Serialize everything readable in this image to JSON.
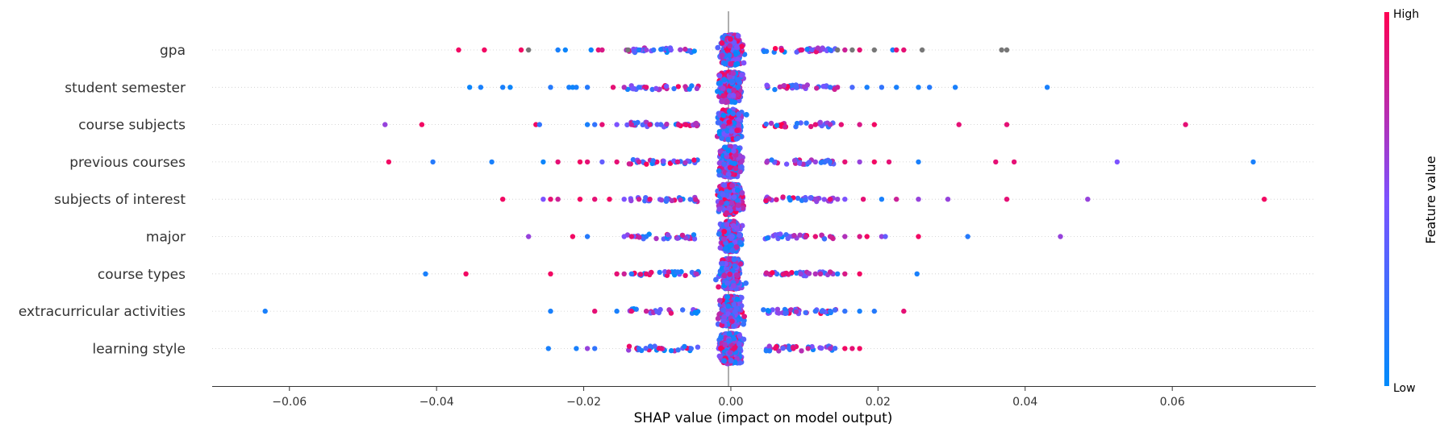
{
  "chart_data": {
    "type": "scatter",
    "subtype": "shap-beeswarm",
    "title": "",
    "xlabel": "SHAP value (impact on model output)",
    "ylabel": "",
    "xlim": [
      -0.0705,
      0.0795
    ],
    "x_ticks": [
      -0.06,
      -0.04,
      -0.02,
      0.0,
      0.02,
      0.04,
      0.06
    ],
    "x_tick_labels": [
      "−0.06",
      "−0.04",
      "−0.02",
      "0.00",
      "0.02",
      "0.04",
      "0.06"
    ],
    "grid": false,
    "colorbar": {
      "title": "Feature value",
      "high_label": "High",
      "low_label": "Low",
      "low_color": "#008bfb",
      "high_color": "#ff0052"
    },
    "features": [
      {
        "name": "gpa",
        "missing_color": "#777777",
        "points": [
          [
            -0.037,
            0.95
          ],
          [
            -0.0335,
            0.95
          ],
          [
            -0.0285,
            0.95
          ],
          [
            -0.0275,
            null
          ],
          [
            -0.0235,
            0.1
          ],
          [
            -0.0225,
            0.05
          ],
          [
            -0.019,
            0.05
          ],
          [
            -0.018,
            0.9
          ],
          [
            -0.0175,
            0.85
          ],
          [
            -0.014,
            null
          ],
          [
            -0.0125,
            0.1
          ],
          [
            -0.0115,
            0.6
          ],
          [
            -0.0105,
            0.2
          ],
          [
            0.0095,
            0.9
          ],
          [
            0.011,
            0.4
          ],
          [
            0.0135,
            0.15
          ],
          [
            0.0145,
            null
          ],
          [
            0.0155,
            0.8
          ],
          [
            0.0165,
            null
          ],
          [
            0.0175,
            0.9
          ],
          [
            0.0195,
            null
          ],
          [
            0.022,
            0.1
          ],
          [
            0.0225,
            0.9
          ],
          [
            0.0235,
            0.9
          ],
          [
            0.026,
            null
          ],
          [
            0.0368,
            null
          ],
          [
            0.0375,
            null
          ]
        ]
      },
      {
        "name": "student semester",
        "points": [
          [
            -0.0355,
            0.05
          ],
          [
            -0.034,
            0.1
          ],
          [
            -0.031,
            0.1
          ],
          [
            -0.03,
            0.05
          ],
          [
            -0.0245,
            0.15
          ],
          [
            -0.022,
            0.1
          ],
          [
            -0.0215,
            0.05
          ],
          [
            -0.021,
            0.1
          ],
          [
            -0.0195,
            0.15
          ],
          [
            -0.016,
            0.9
          ],
          [
            -0.0145,
            0.7
          ],
          [
            -0.0125,
            0.2
          ],
          [
            -0.0115,
            0.9
          ],
          [
            0.0135,
            0.2
          ],
          [
            0.0145,
            0.8
          ],
          [
            0.0165,
            0.3
          ],
          [
            0.0185,
            0.1
          ],
          [
            0.0205,
            0.2
          ],
          [
            0.0225,
            0.1
          ],
          [
            0.0255,
            0.1
          ],
          [
            0.027,
            0.15
          ],
          [
            0.0305,
            0.1
          ],
          [
            0.043,
            0.1
          ]
        ]
      },
      {
        "name": "course subjects",
        "points": [
          [
            -0.047,
            0.6
          ],
          [
            -0.042,
            0.95
          ],
          [
            -0.0265,
            0.95
          ],
          [
            -0.026,
            0.2
          ],
          [
            -0.0195,
            0.1
          ],
          [
            -0.0185,
            0.2
          ],
          [
            -0.0175,
            0.9
          ],
          [
            -0.0155,
            0.5
          ],
          [
            -0.0135,
            0.8
          ],
          [
            -0.011,
            0.9
          ],
          [
            0.0115,
            0.9
          ],
          [
            0.0135,
            0.7
          ],
          [
            0.015,
            0.9
          ],
          [
            0.0175,
            0.85
          ],
          [
            0.0195,
            0.95
          ],
          [
            0.031,
            0.9
          ],
          [
            0.0375,
            0.9
          ],
          [
            0.0618,
            0.9
          ]
        ]
      },
      {
        "name": "previous courses",
        "points": [
          [
            -0.0465,
            0.95
          ],
          [
            -0.0405,
            0.15
          ],
          [
            -0.0325,
            0.1
          ],
          [
            -0.0255,
            0.05
          ],
          [
            -0.0235,
            0.9
          ],
          [
            -0.0205,
            0.95
          ],
          [
            -0.0195,
            0.9
          ],
          [
            -0.0175,
            0.4
          ],
          [
            -0.0155,
            0.9
          ],
          [
            -0.0125,
            0.8
          ],
          [
            0.0115,
            0.6
          ],
          [
            0.0135,
            0.2
          ],
          [
            0.0155,
            0.9
          ],
          [
            0.0175,
            0.6
          ],
          [
            0.0195,
            0.95
          ],
          [
            0.0215,
            0.9
          ],
          [
            0.0255,
            0.1
          ],
          [
            0.036,
            0.9
          ],
          [
            0.0385,
            0.9
          ],
          [
            0.0525,
            0.5
          ],
          [
            0.071,
            0.1
          ]
        ]
      },
      {
        "name": "subjects of interest",
        "points": [
          [
            -0.031,
            0.95
          ],
          [
            -0.0255,
            0.5
          ],
          [
            -0.0245,
            0.9
          ],
          [
            -0.0235,
            0.8
          ],
          [
            -0.0205,
            0.95
          ],
          [
            -0.0185,
            0.9
          ],
          [
            -0.0165,
            0.95
          ],
          [
            -0.0145,
            0.5
          ],
          [
            -0.0125,
            0.8
          ],
          [
            -0.011,
            0.9
          ],
          [
            0.0115,
            0.6
          ],
          [
            0.0135,
            0.9
          ],
          [
            0.0145,
            0.6
          ],
          [
            0.0155,
            0.5
          ],
          [
            0.018,
            0.9
          ],
          [
            0.0205,
            0.1
          ],
          [
            0.0225,
            0.8
          ],
          [
            0.0255,
            0.6
          ],
          [
            0.0295,
            0.6
          ],
          [
            0.0375,
            0.9
          ],
          [
            0.0485,
            0.6
          ],
          [
            0.0725,
            0.95
          ]
        ]
      },
      {
        "name": "major",
        "points": [
          [
            -0.0275,
            0.6
          ],
          [
            -0.0215,
            0.95
          ],
          [
            -0.0195,
            0.15
          ],
          [
            -0.0145,
            0.5
          ],
          [
            -0.0135,
            0.9
          ],
          [
            -0.0115,
            0.15
          ],
          [
            0.0115,
            0.9
          ],
          [
            0.0135,
            0.8
          ],
          [
            0.0155,
            0.7
          ],
          [
            0.0175,
            0.85
          ],
          [
            0.0185,
            0.95
          ],
          [
            0.0205,
            0.6
          ],
          [
            0.021,
            0.4
          ],
          [
            0.0255,
            0.95
          ],
          [
            0.0322,
            0.15
          ],
          [
            0.0448,
            0.6
          ]
        ]
      },
      {
        "name": "course types",
        "points": [
          [
            -0.0415,
            0.1
          ],
          [
            -0.036,
            0.95
          ],
          [
            -0.0245,
            0.95
          ],
          [
            -0.0155,
            0.9
          ],
          [
            -0.0145,
            0.8
          ],
          [
            -0.0135,
            0.15
          ],
          [
            -0.0115,
            0.9
          ],
          [
            0.0095,
            0.6
          ],
          [
            0.0115,
            0.7
          ],
          [
            0.0145,
            0.1
          ],
          [
            0.0155,
            0.85
          ],
          [
            0.0175,
            0.95
          ],
          [
            0.0253,
            0.1
          ]
        ]
      },
      {
        "name": "extracurricular activities",
        "points": [
          [
            -0.0633,
            0.1
          ],
          [
            -0.0245,
            0.1
          ],
          [
            -0.0185,
            0.9
          ],
          [
            -0.0155,
            0.1
          ],
          [
            -0.0135,
            0.9
          ],
          [
            -0.0115,
            0.8
          ],
          [
            0.0115,
            0.2
          ],
          [
            0.0125,
            0.3
          ],
          [
            0.0135,
            0.15
          ],
          [
            0.0155,
            0.2
          ],
          [
            0.0175,
            0.1
          ],
          [
            0.0195,
            0.15
          ],
          [
            0.0235,
            0.9
          ]
        ]
      },
      {
        "name": "learning style",
        "points": [
          [
            -0.0248,
            0.1
          ],
          [
            -0.021,
            0.1
          ],
          [
            -0.0195,
            0.6
          ],
          [
            -0.0185,
            0.2
          ],
          [
            -0.0125,
            0.2
          ],
          [
            -0.0095,
            0.9
          ],
          [
            0.0085,
            0.9
          ],
          [
            0.0105,
            0.8
          ],
          [
            0.0135,
            0.7
          ],
          [
            0.0155,
            0.95
          ],
          [
            0.0165,
            0.9
          ],
          [
            0.0175,
            0.95
          ]
        ]
      }
    ]
  }
}
